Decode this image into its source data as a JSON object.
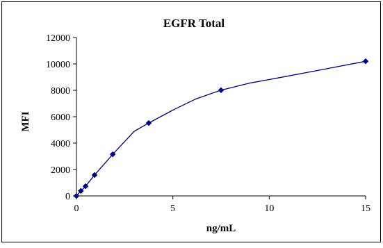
{
  "chart_data": {
    "type": "scatter",
    "title": "EGFR Total",
    "xlabel": "ng/mL",
    "ylabel": "MFI",
    "xlim": [
      0,
      15
    ],
    "ylim": [
      0,
      12000
    ],
    "xticks": [
      0,
      5,
      10,
      15
    ],
    "yticks": [
      0,
      2000,
      4000,
      6000,
      8000,
      10000,
      12000
    ],
    "grid": false,
    "legend": "none",
    "colors": {
      "series": "#000080",
      "axis": "#000000",
      "frame": "#000000"
    },
    "marker": "diamond",
    "series": [
      {
        "x": [
          0,
          0.23,
          0.47,
          0.94,
          1.88,
          3.75,
          7.5,
          15
        ],
        "y": [
          0,
          380,
          730,
          1580,
          3150,
          5520,
          8010,
          10200
        ]
      }
    ],
    "smooth_curve": {
      "x": [
        0,
        0.23,
        0.47,
        0.94,
        1.88,
        3.0,
        3.75,
        5.0,
        6.2,
        7.5,
        9.0,
        10.5,
        12.5,
        15
      ],
      "y": [
        0,
        380,
        730,
        1580,
        3150,
        4900,
        5520,
        6500,
        7350,
        8010,
        8550,
        8950,
        9500,
        10200
      ]
    }
  }
}
